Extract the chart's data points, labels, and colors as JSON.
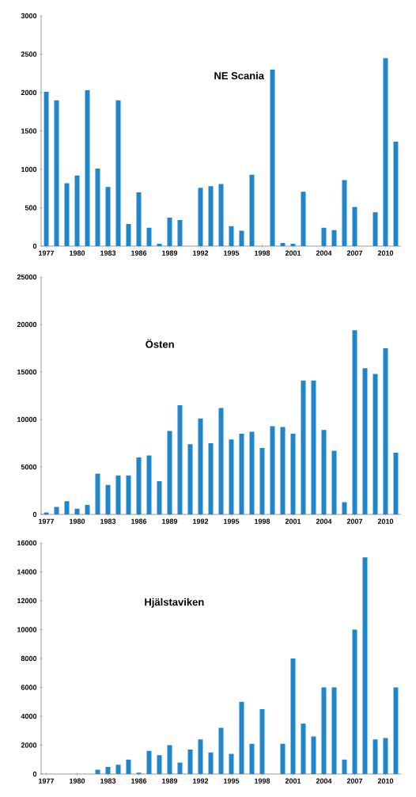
{
  "chart_data": [
    {
      "type": "bar",
      "title": "NE Scania",
      "color": "#1f87c9",
      "grid": false,
      "categories": [
        "1977",
        null,
        null,
        "1980",
        null,
        null,
        "1983",
        null,
        null,
        "1986",
        null,
        null,
        "1989",
        null,
        null,
        "1992",
        null,
        null,
        "1995",
        null,
        null,
        "1998",
        null,
        null,
        "2001",
        null,
        null,
        "2004",
        null,
        null,
        "2007",
        null,
        null,
        "2010",
        null
      ],
      "values": [
        2010,
        1900,
        820,
        920,
        2030,
        1010,
        770,
        1900,
        290,
        700,
        240,
        30,
        370,
        340,
        0,
        760,
        780,
        810,
        260,
        200,
        930,
        0,
        2300,
        40,
        30,
        710,
        0,
        240,
        210,
        860,
        510,
        0,
        440,
        2450,
        1360
      ],
      "ylim": [
        0,
        3000
      ],
      "yticks": [
        0,
        500,
        1000,
        1500,
        2000,
        2500,
        3000
      ]
    },
    {
      "type": "bar",
      "title": "Östen",
      "color": "#1f87c9",
      "grid": false,
      "categories": [
        "1977",
        null,
        null,
        "1980",
        null,
        null,
        "1983",
        null,
        null,
        "1986",
        null,
        null,
        "1989",
        null,
        null,
        "1992",
        null,
        null,
        "1995",
        null,
        null,
        "1998",
        null,
        null,
        "2001",
        null,
        null,
        "2004",
        null,
        null,
        "2007",
        null,
        null,
        "2010",
        null
      ],
      "values": [
        200,
        800,
        1400,
        600,
        1000,
        4300,
        3100,
        4100,
        4100,
        6000,
        6200,
        3500,
        8800,
        11500,
        7400,
        10100,
        7500,
        11200,
        7900,
        8500,
        8700,
        7000,
        9300,
        9200,
        8500,
        14100,
        14100,
        8900,
        6700,
        1300,
        19400,
        15400,
        14800,
        17500,
        6500
      ],
      "ylim": [
        0,
        25000
      ],
      "yticks": [
        0,
        5000,
        10000,
        15000,
        20000,
        25000
      ]
    },
    {
      "type": "bar",
      "title": "Hjälstaviken",
      "color": "#1f87c9",
      "grid": false,
      "categories": [
        "1977",
        null,
        null,
        "1980",
        null,
        null,
        "1983",
        null,
        null,
        "1986",
        null,
        null,
        "1989",
        null,
        null,
        "1992",
        null,
        null,
        "1995",
        null,
        null,
        "1998",
        null,
        null,
        "2001",
        null,
        null,
        "2004",
        null,
        null,
        "2007",
        null,
        null,
        "2010",
        null
      ],
      "values": [
        0,
        0,
        0,
        0,
        0,
        300,
        500,
        650,
        1000,
        100,
        1600,
        1300,
        2000,
        800,
        1700,
        2400,
        1500,
        3200,
        1400,
        5000,
        2100,
        4500,
        0,
        2100,
        8000,
        3500,
        2600,
        6000,
        6000,
        1000,
        10000,
        15000,
        2400,
        2500,
        6000
      ],
      "ylim": [
        0,
        16000
      ],
      "yticks": [
        0,
        2000,
        4000,
        6000,
        8000,
        10000,
        12000,
        14000,
        16000
      ]
    }
  ]
}
